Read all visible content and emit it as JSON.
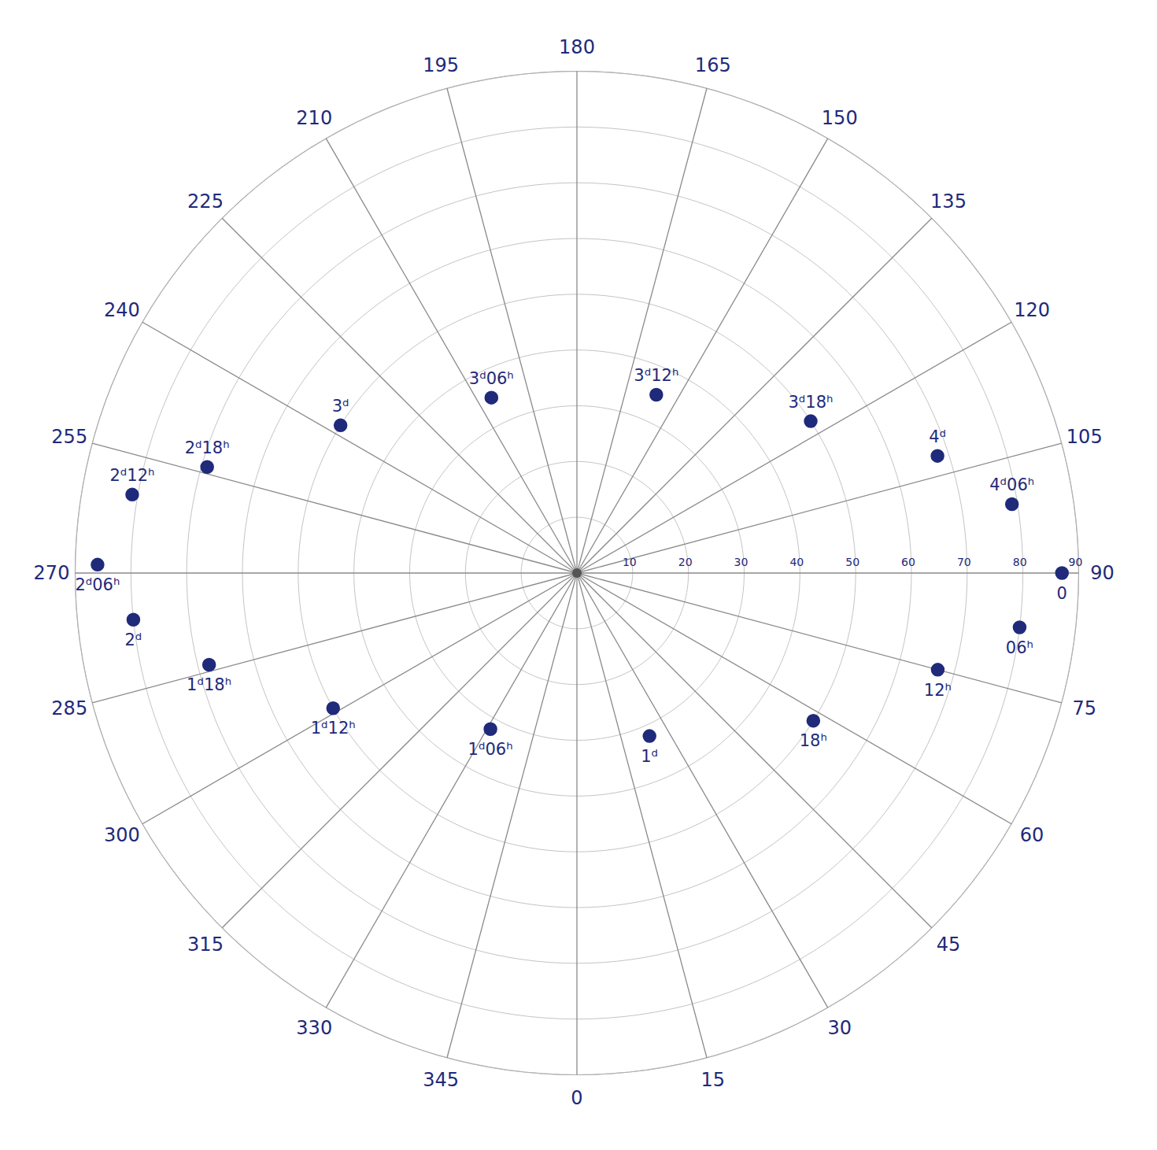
{
  "chart_data": {
    "type": "polar",
    "categories": [
      "0",
      "06ʰ",
      "12ʰ",
      "18ʰ",
      "1ᵈ",
      "1ᵈ06ʰ",
      "1ᵈ12ʰ",
      "1ᵈ18ʰ",
      "2ᵈ",
      "2ᵈ06ʰ",
      "2ᵈ12ʰ",
      "2ᵈ18ʰ",
      "3ᵈ",
      "3ᵈ06ʰ",
      "3ᵈ12ʰ",
      "3ᵈ18ʰ",
      "4ᵈ",
      "4ᵈ06ʰ"
    ],
    "theta": [
      90,
      83,
      75,
      58,
      24,
      331,
      299,
      284,
      276,
      269,
      260,
      254,
      238,
      206,
      156,
      123,
      108,
      99
    ],
    "values": [
      87,
      80,
      67,
      50,
      32,
      32,
      50,
      68,
      80,
      86,
      81,
      69,
      50,
      35,
      35,
      50,
      68,
      79
    ],
    "color": "#1f2a7a",
    "rlim": [
      0,
      90
    ],
    "rticks": [
      10,
      20,
      30,
      40,
      50,
      60,
      70,
      80,
      90
    ],
    "thetaticks": [
      0,
      15,
      30,
      45,
      60,
      75,
      90,
      105,
      120,
      135,
      150,
      165,
      180,
      195,
      210,
      225,
      240,
      255,
      270,
      285,
      300,
      315,
      330,
      345
    ],
    "grid": true
  }
}
